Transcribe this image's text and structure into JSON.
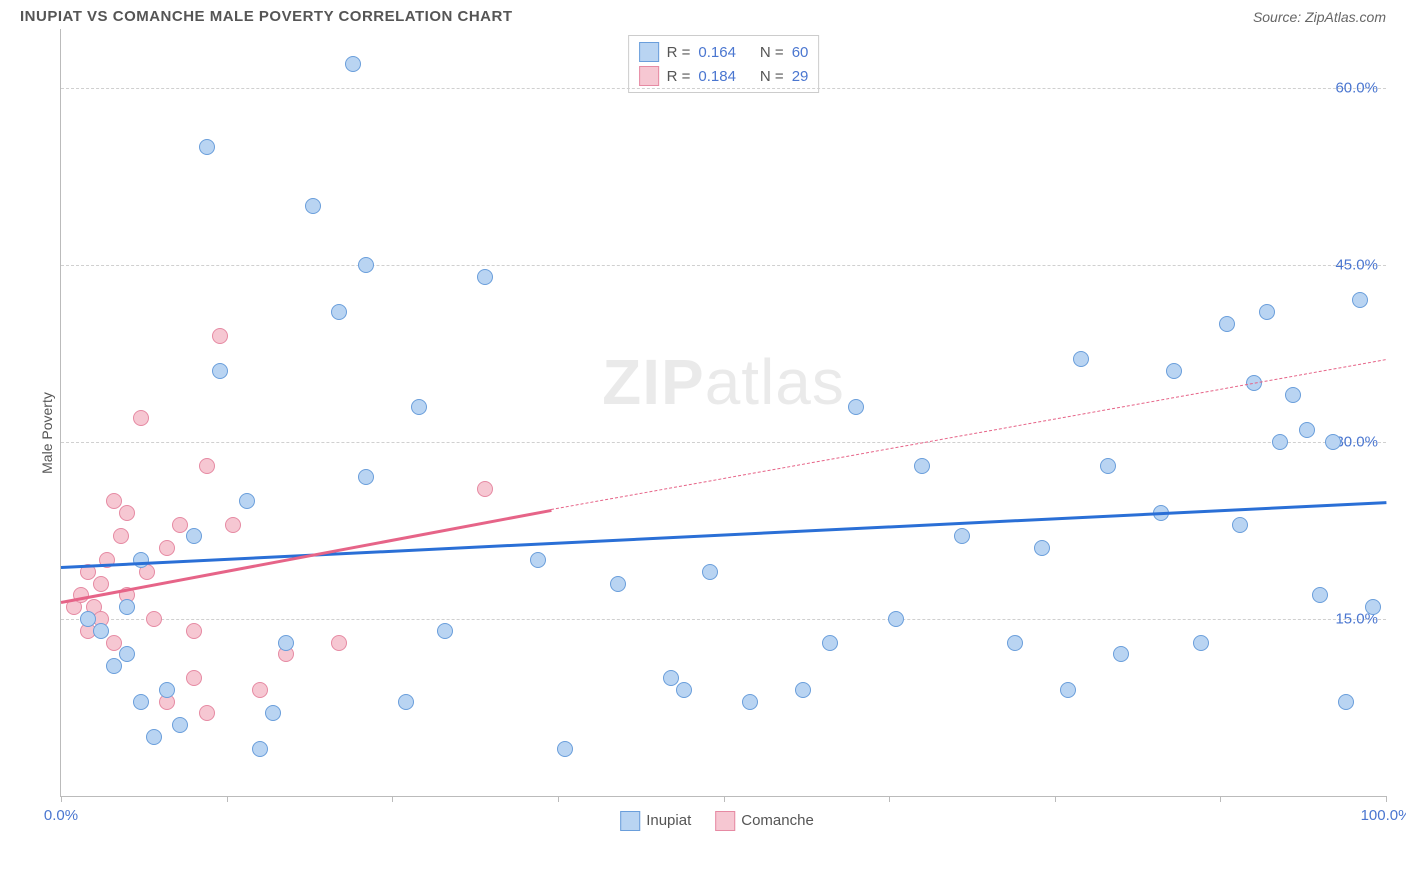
{
  "header": {
    "title": "INUPIAT VS COMANCHE MALE POVERTY CORRELATION CHART",
    "source_prefix": "Source: ",
    "source_name": "ZipAtlas.com"
  },
  "chart": {
    "type": "scatter",
    "ylabel": "Male Poverty",
    "xlim": [
      0,
      100
    ],
    "ylim": [
      0,
      65
    ],
    "yticks": [
      15,
      30,
      45,
      60
    ],
    "ytick_labels": [
      "15.0%",
      "30.0%",
      "45.0%",
      "60.0%"
    ],
    "xtick_positions": [
      0,
      12.5,
      25,
      37.5,
      50,
      62.5,
      75,
      87.5,
      100
    ],
    "xtick_labels": {
      "0": "0.0%",
      "100": "100.0%"
    },
    "background_color": "#ffffff",
    "grid_color": "#d0d0d0",
    "axis_color": "#bbbbbb",
    "watermark_zip": "ZIP",
    "watermark_atlas": "atlas",
    "series": {
      "inupiat": {
        "name": "Inupiat",
        "marker_fill": "#b9d4f2",
        "marker_stroke": "#6a9edb",
        "line_color": "#2a6fd6",
        "line_width": 3,
        "r_value": "0.164",
        "n_value": "60",
        "trend": {
          "x1": 0,
          "y1": 19.5,
          "x2": 100,
          "y2": 25
        },
        "points": [
          [
            2,
            15
          ],
          [
            3,
            14
          ],
          [
            4,
            11
          ],
          [
            5,
            12
          ],
          [
            5,
            16
          ],
          [
            6,
            8
          ],
          [
            6,
            20
          ],
          [
            7,
            5
          ],
          [
            8,
            9
          ],
          [
            9,
            6
          ],
          [
            10,
            22
          ],
          [
            11,
            55
          ],
          [
            12,
            36
          ],
          [
            14,
            25
          ],
          [
            15,
            4
          ],
          [
            16,
            7
          ],
          [
            17,
            13
          ],
          [
            19,
            50
          ],
          [
            21,
            41
          ],
          [
            22,
            62
          ],
          [
            23,
            45
          ],
          [
            23,
            27
          ],
          [
            26,
            8
          ],
          [
            27,
            33
          ],
          [
            29,
            14
          ],
          [
            32,
            44
          ],
          [
            36,
            20
          ],
          [
            38,
            4
          ],
          [
            42,
            18
          ],
          [
            46,
            10
          ],
          [
            47,
            9
          ],
          [
            49,
            19
          ],
          [
            52,
            8
          ],
          [
            56,
            9
          ],
          [
            58,
            13
          ],
          [
            60,
            33
          ],
          [
            63,
            15
          ],
          [
            65,
            28
          ],
          [
            68,
            22
          ],
          [
            72,
            13
          ],
          [
            74,
            21
          ],
          [
            76,
            9
          ],
          [
            77,
            37
          ],
          [
            79,
            28
          ],
          [
            80,
            12
          ],
          [
            83,
            24
          ],
          [
            84,
            36
          ],
          [
            86,
            13
          ],
          [
            88,
            40
          ],
          [
            89,
            23
          ],
          [
            90,
            35
          ],
          [
            91,
            41
          ],
          [
            92,
            30
          ],
          [
            93,
            34
          ],
          [
            94,
            31
          ],
          [
            95,
            17
          ],
          [
            96,
            30
          ],
          [
            97,
            8
          ],
          [
            98,
            42
          ],
          [
            99,
            16
          ]
        ]
      },
      "comanche": {
        "name": "Comanche",
        "marker_fill": "#f6c7d2",
        "marker_stroke": "#e68aa3",
        "line_color": "#e66488",
        "line_width": 3,
        "r_value": "0.184",
        "n_value": "29",
        "trend_solid": {
          "x1": 0,
          "y1": 16.5,
          "x2": 37,
          "y2": 24.3
        },
        "trend_dash": {
          "x1": 37,
          "y1": 24.3,
          "x2": 100,
          "y2": 37
        },
        "points": [
          [
            1,
            16
          ],
          [
            1.5,
            17
          ],
          [
            2,
            14
          ],
          [
            2,
            19
          ],
          [
            2.5,
            16
          ],
          [
            3,
            15
          ],
          [
            3,
            18
          ],
          [
            3.5,
            20
          ],
          [
            4,
            13
          ],
          [
            4,
            25
          ],
          [
            4.5,
            22
          ],
          [
            5,
            17
          ],
          [
            5,
            24
          ],
          [
            6,
            32
          ],
          [
            6.5,
            19
          ],
          [
            7,
            15
          ],
          [
            8,
            21
          ],
          [
            8,
            8
          ],
          [
            9,
            23
          ],
          [
            10,
            14
          ],
          [
            10,
            10
          ],
          [
            11,
            28
          ],
          [
            11,
            7
          ],
          [
            12,
            39
          ],
          [
            13,
            23
          ],
          [
            15,
            9
          ],
          [
            17,
            12
          ],
          [
            21,
            13
          ],
          [
            32,
            26
          ]
        ]
      }
    },
    "legend_top": {
      "r_label": "R =",
      "n_label": "N ="
    },
    "legend_bottom": {
      "items": [
        "inupiat",
        "comanche"
      ]
    }
  }
}
